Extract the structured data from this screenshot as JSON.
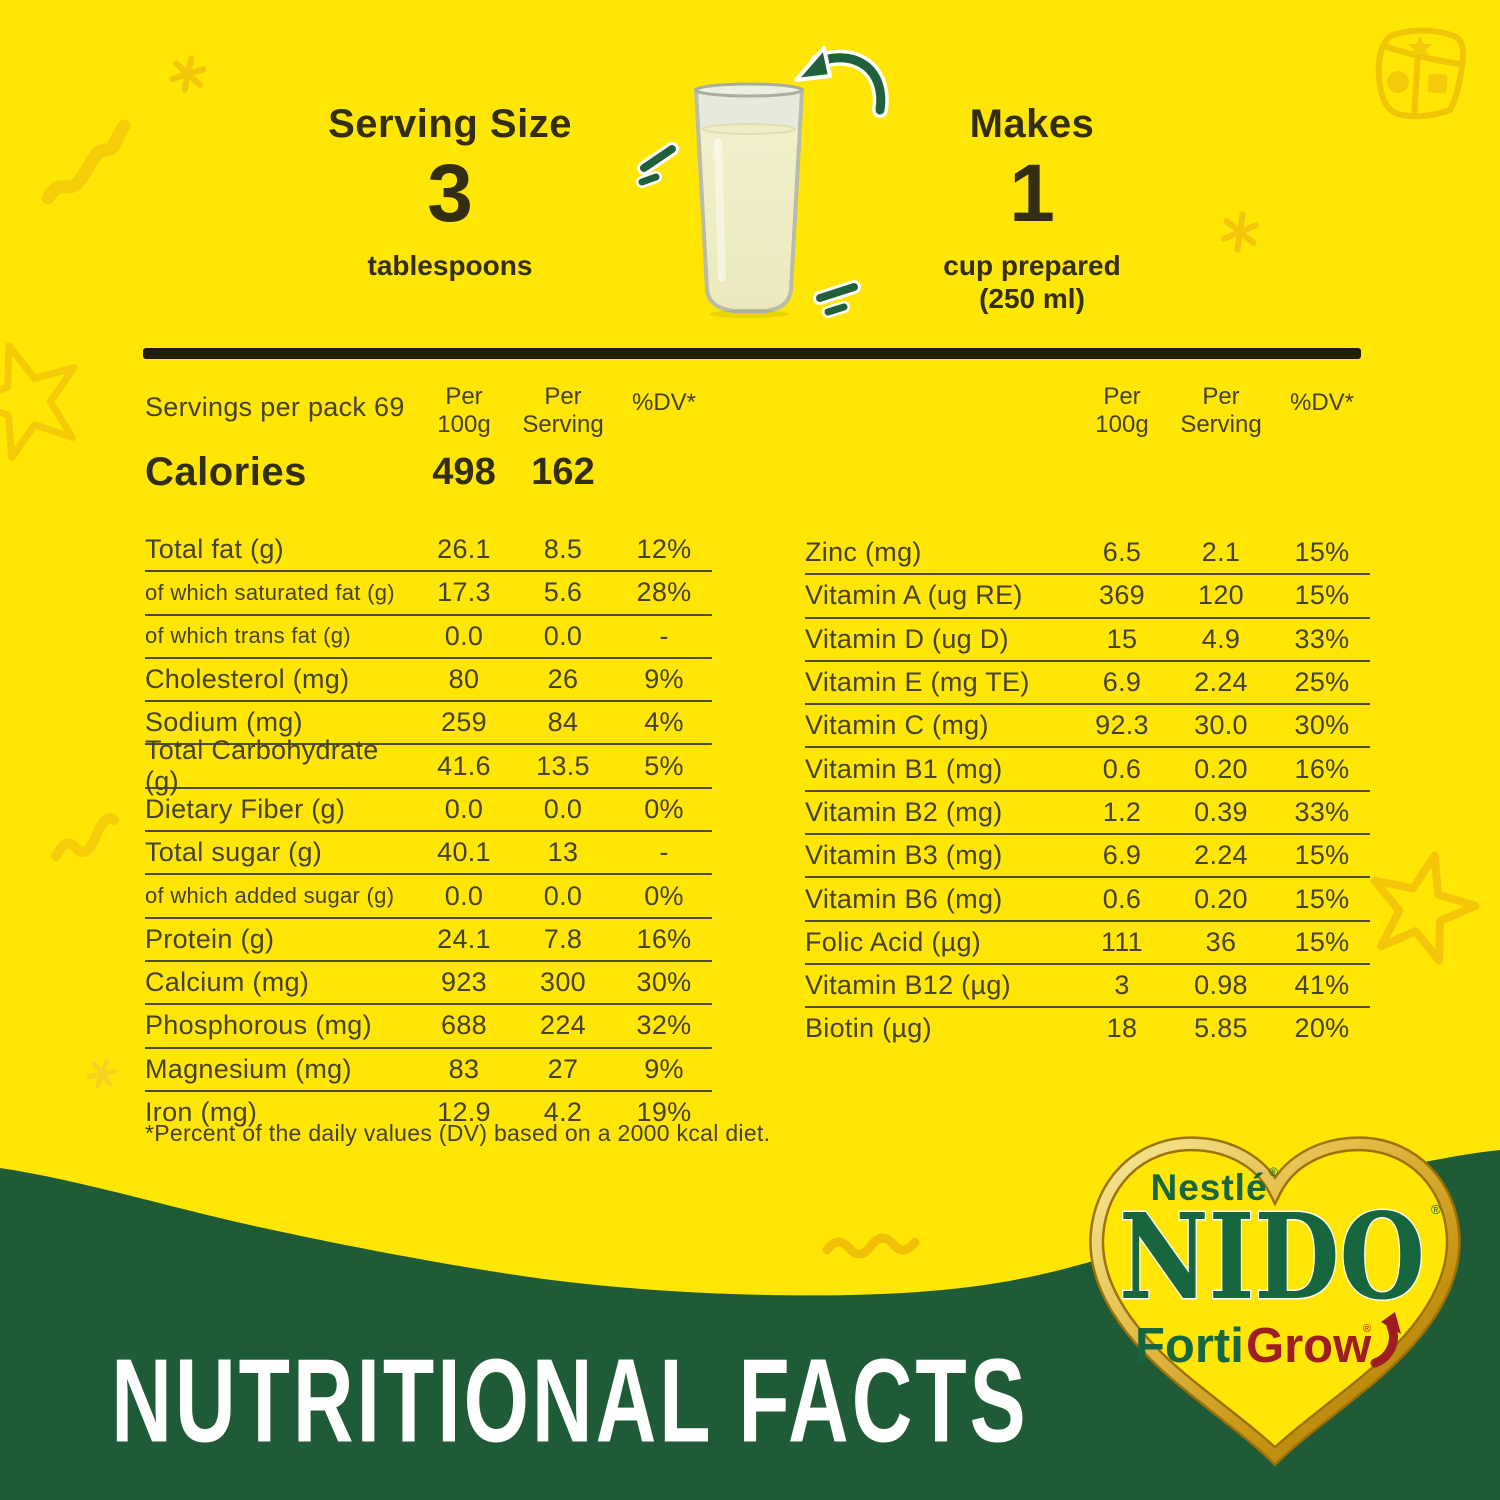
{
  "header": {
    "serving_size_label": "Serving Size",
    "serving_size_value": "3",
    "serving_size_unit": "tablespoons",
    "makes_label": "Makes",
    "makes_value": "1",
    "makes_unit": "cup prepared\n(250 ml)"
  },
  "columns": {
    "servings_per_pack": "Servings per pack 69",
    "per_100g": "Per\n100g",
    "per_serving": "Per\nServing",
    "dv": "%DV*"
  },
  "calories": {
    "label": "Calories",
    "per_100g": "498",
    "per_serving": "162"
  },
  "left_rows": [
    {
      "label": "Total fat (g)",
      "per_100g": "26.1",
      "per_serving": "8.5",
      "dv": "12%",
      "small": false
    },
    {
      "label": "of which saturated fat (g)",
      "per_100g": "17.3",
      "per_serving": "5.6",
      "dv": "28%",
      "small": true
    },
    {
      "label": "of which trans fat (g)",
      "per_100g": "0.0",
      "per_serving": "0.0",
      "dv": "-",
      "small": true
    },
    {
      "label": "Cholesterol (mg)",
      "per_100g": "80",
      "per_serving": "26",
      "dv": "9%",
      "small": false
    },
    {
      "label": "Sodium (mg)",
      "per_100g": "259",
      "per_serving": "84",
      "dv": "4%",
      "small": false
    },
    {
      "label": "Total Carbohydrate (g)",
      "per_100g": "41.6",
      "per_serving": "13.5",
      "dv": "5%",
      "small": false
    },
    {
      "label": "Dietary Fiber (g)",
      "per_100g": "0.0",
      "per_serving": "0.0",
      "dv": "0%",
      "small": false
    },
    {
      "label": "Total sugar (g)",
      "per_100g": "40.1",
      "per_serving": "13",
      "dv": "-",
      "small": false
    },
    {
      "label": "of which added sugar (g)",
      "per_100g": "0.0",
      "per_serving": "0.0",
      "dv": "0%",
      "small": true
    },
    {
      "label": "Protein (g)",
      "per_100g": "24.1",
      "per_serving": "7.8",
      "dv": "16%",
      "small": false
    },
    {
      "label": "Calcium (mg)",
      "per_100g": "923",
      "per_serving": "300",
      "dv": "30%",
      "small": false
    },
    {
      "label": "Phosphorous (mg)",
      "per_100g": "688",
      "per_serving": "224",
      "dv": "32%",
      "small": false
    },
    {
      "label": "Magnesium (mg)",
      "per_100g": "83",
      "per_serving": "27",
      "dv": "9%",
      "small": false
    },
    {
      "label": "Iron (mg)",
      "per_100g": "12.9",
      "per_serving": "4.2",
      "dv": "19%",
      "small": false
    }
  ],
  "right_rows": [
    {
      "label": "Zinc (mg)",
      "per_100g": "6.5",
      "per_serving": "2.1",
      "dv": "15%",
      "small": false
    },
    {
      "label": "Vitamin A (ug RE)",
      "per_100g": "369",
      "per_serving": "120",
      "dv": "15%",
      "small": false
    },
    {
      "label": "Vitamin D (ug D)",
      "per_100g": "15",
      "per_serving": "4.9",
      "dv": "33%",
      "small": false
    },
    {
      "label": "Vitamin E (mg TE)",
      "per_100g": "6.9",
      "per_serving": "2.24",
      "dv": "25%",
      "small": false
    },
    {
      "label": "Vitamin C (mg)",
      "per_100g": "92.3",
      "per_serving": "30.0",
      "dv": "30%",
      "small": false
    },
    {
      "label": "Vitamin B1 (mg)",
      "per_100g": "0.6",
      "per_serving": "0.20",
      "dv": "16%",
      "small": false
    },
    {
      "label": "Vitamin B2 (mg)",
      "per_100g": "1.2",
      "per_serving": "0.39",
      "dv": "33%",
      "small": false
    },
    {
      "label": "Vitamin B3 (mg)",
      "per_100g": "6.9",
      "per_serving": "2.24",
      "dv": "15%",
      "small": false
    },
    {
      "label": "Vitamin B6 (mg)",
      "per_100g": "0.6",
      "per_serving": "0.20",
      "dv": "15%",
      "small": false
    },
    {
      "label": "Folic Acid (µg)",
      "per_100g": "111",
      "per_serving": "36",
      "dv": "15%",
      "small": false
    },
    {
      "label": "Vitamin B12 (µg)",
      "per_100g": "3",
      "per_serving": "0.98",
      "dv": "41%",
      "small": false
    },
    {
      "label": "Biotin (µg)",
      "per_100g": "18",
      "per_serving": "5.85",
      "dv": "20%",
      "small": false
    }
  ],
  "footnote": "*Percent of the daily values (DV) based on a 2000 kcal diet.",
  "footer_title": "NUTRITIONAL FACTS",
  "logo": {
    "brand": "Nestlé",
    "brand_reg": "®",
    "product": "NIDO",
    "product_reg": "®",
    "sub_green": "Forti",
    "sub_red": "Grow",
    "sub_reg": "®"
  },
  "colors": {
    "background_yellow": "#FFE605",
    "doodle_yellow": "#F2C30A",
    "panel_green": "#1F5B36",
    "brand_green": "#17663F",
    "brand_red": "#9E1D20",
    "gold": "#C89311",
    "heading_text": "#332D12",
    "table_text": "#45412C",
    "divider": "#221D0C",
    "milk_cream": "#F2F0CB"
  }
}
